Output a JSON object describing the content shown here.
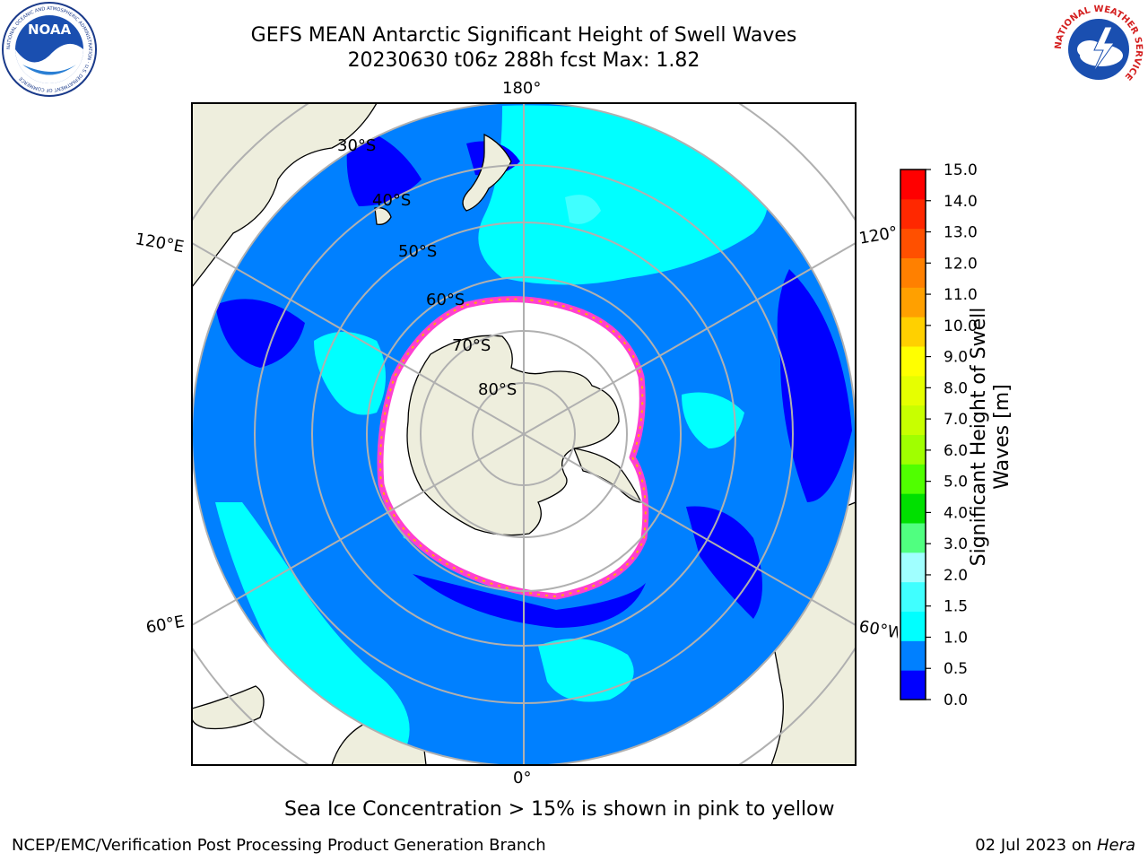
{
  "title": {
    "line1": "GEFS MEAN Antarctic Significant Height of Swell Waves",
    "line2": "20230630 t06z 288h fcst   Max: 1.82"
  },
  "map": {
    "projection": "south-polar-stereographic",
    "longitude_labels": {
      "top": "180°",
      "bottom": "0°",
      "upper_left": "120°E",
      "upper_right": "120°W",
      "lower_left": "60°E",
      "lower_right": "60°W"
    },
    "latitude_labels": [
      "30°S",
      "40°S",
      "50°S",
      "60°S",
      "70°S",
      "80°S"
    ],
    "colors": {
      "land": "#eeeedd",
      "sea_ice": "#ffffff",
      "grid": "#b0b0b0",
      "coast": "#000000"
    }
  },
  "colorbar": {
    "label_line1": "Significant Height of Swell",
    "label_line2": "Waves [m]",
    "ticks": [
      "0.0",
      "0.5",
      "1.0",
      "1.5",
      "2.0",
      "3.0",
      "4.0",
      "5.0",
      "6.0",
      "7.0",
      "8.0",
      "9.0",
      "10.0",
      "11.0",
      "12.0",
      "13.0",
      "14.0",
      "15.0"
    ],
    "colors": [
      "#0000ff",
      "#0080ff",
      "#00ffff",
      "#40ffff",
      "#a0ffff",
      "#50ff80",
      "#00e000",
      "#50ff00",
      "#a0ff00",
      "#c8ff00",
      "#e6ff00",
      "#ffff00",
      "#ffd000",
      "#ffa000",
      "#ff8000",
      "#ff5000",
      "#ff2800",
      "#ff0000"
    ]
  },
  "sea_ice_note": "Sea Ice Concentration > 15% is shown in pink to yellow",
  "footer": {
    "left": "NCEP/EMC/Verification Post Processing Product Generation Branch",
    "right_prefix": "02 Jul 2023 on ",
    "right_machine": "Hera"
  },
  "logos": {
    "noaa_text": "NOAA",
    "noaa_ring_text": "NATIONAL OCEANIC AND ATMOSPHERIC ADMINISTRATION · U.S. DEPARTMENT OF COMMERCE",
    "nws_ring_text": "NATIONAL WEATHER SERVICE"
  }
}
